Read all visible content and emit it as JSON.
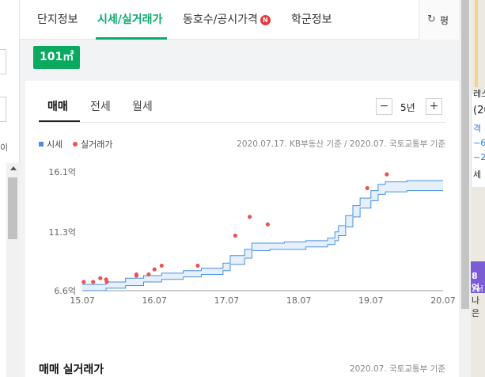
{
  "tabs": {
    "complex_info": "단지정보",
    "price": "시세/실거래가",
    "units": "동호수/공시가격",
    "units_badge": "N",
    "school": "학군정보",
    "refresh_label": "평"
  },
  "area_badge": "101㎡",
  "trade_tabs": {
    "sale": "매매",
    "jeonse": "전세",
    "monthly": "월세"
  },
  "period": {
    "minus": "−",
    "label": "5년",
    "plus": "+"
  },
  "legend": {
    "market": "시세",
    "actual": "실거래가",
    "source": "2020.07.17. KB부동산 기준 / 2020.07. 국토교통부 기준"
  },
  "chart_data": {
    "type": "line",
    "title": "",
    "xlabel": "",
    "ylabel": "",
    "x_ticks": [
      "15.07",
      "16.07",
      "17.07",
      "18.07",
      "19.07",
      "20.07"
    ],
    "y_ticks": [
      "6.6억",
      "11.3억",
      "16.1억"
    ],
    "xlim": [
      2015.5,
      2020.5
    ],
    "ylim": [
      6.6,
      16.1
    ],
    "series": [
      {
        "name": "시세",
        "kind": "band",
        "color": "#4a8fe0",
        "x": [
          2015.5,
          2015.83,
          2016.1,
          2016.35,
          2016.6,
          2016.9,
          2017.15,
          2017.45,
          2017.55,
          2017.75,
          2017.85,
          2018.1,
          2018.3,
          2018.6,
          2018.8,
          2018.9,
          2019.0,
          2019.05,
          2019.15,
          2019.25,
          2019.35,
          2019.5,
          2019.6,
          2019.7,
          2020.0,
          2020.5
        ],
        "upper": [
          7.1,
          7.3,
          7.6,
          7.8,
          8.0,
          8.2,
          8.4,
          8.8,
          9.4,
          9.9,
          10.4,
          10.4,
          10.5,
          10.6,
          10.6,
          10.8,
          11.3,
          11.8,
          12.6,
          13.4,
          14.0,
          14.6,
          15.1,
          15.3,
          15.4,
          15.4
        ],
        "lower": [
          6.6,
          6.8,
          7.0,
          7.3,
          7.5,
          7.7,
          7.9,
          8.2,
          8.7,
          9.2,
          9.8,
          9.9,
          9.9,
          10.1,
          10.1,
          10.3,
          10.6,
          11.0,
          11.7,
          12.5,
          13.2,
          13.8,
          14.3,
          14.5,
          14.6,
          14.6
        ]
      },
      {
        "name": "실거래가",
        "kind": "scatter",
        "color": "#e85555",
        "x": [
          2015.52,
          2015.65,
          2015.75,
          2015.83,
          2015.84,
          2016.25,
          2016.25,
          2016.42,
          2016.5,
          2016.6,
          2017.1,
          2017.62,
          2017.82,
          2018.07,
          2019.45,
          2019.72
        ],
        "y": [
          7.3,
          7.3,
          7.6,
          7.5,
          7.3,
          7.8,
          7.9,
          7.9,
          8.3,
          8.6,
          8.6,
          11.0,
          12.5,
          11.9,
          14.8,
          15.9
        ]
      }
    ],
    "grid": false,
    "legend": "top-left"
  },
  "section": {
    "title": "매매 실거래가",
    "source": "2020.07. 국토교통부 기준"
  },
  "left_panel": {
    "text": "이"
  },
  "right_map": {
    "lines": [
      "레스",
      "(20",
      "격",
      "~6",
      "~2",
      "세"
    ],
    "purple_text": "8억",
    "purple_sub": "2㎡",
    "bottom_text": "나은"
  }
}
